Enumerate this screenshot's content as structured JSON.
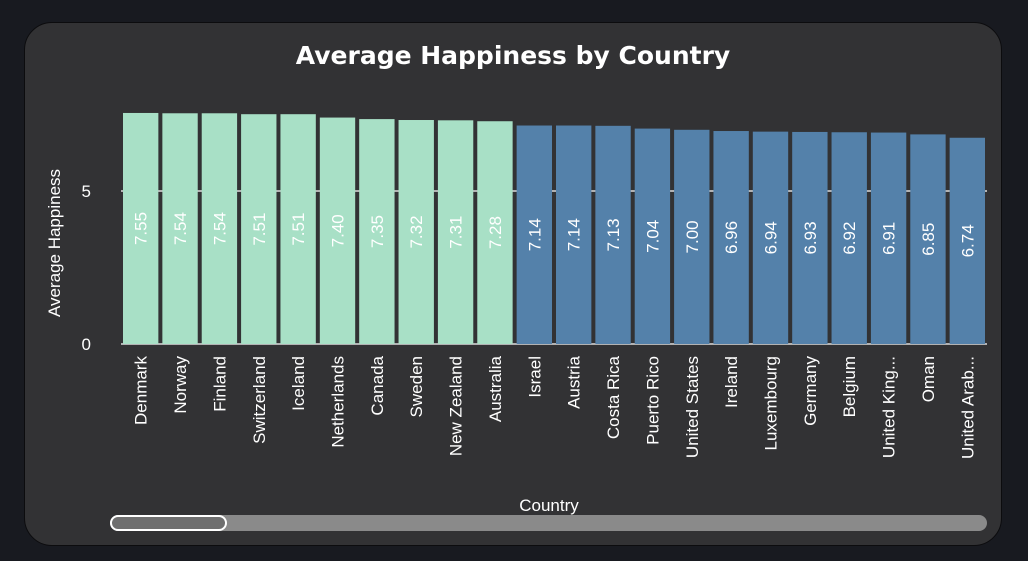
{
  "chart_data": {
    "type": "bar",
    "title": "Average Happiness by Country",
    "xlabel": "Country",
    "ylabel": "Average Happiness",
    "ylim": [
      0,
      7.55
    ],
    "yticks": [
      0,
      5
    ],
    "grid": true,
    "legend": "none",
    "categories": [
      "Denmark",
      "Norway",
      "Finland",
      "Switzerland",
      "Iceland",
      "Netherlands",
      "Canada",
      "Sweden",
      "New Zealand",
      "Australia",
      "Israel",
      "Austria",
      "Costa Rica",
      "Puerto Rico",
      "United States",
      "Ireland",
      "Luxembourg",
      "Germany",
      "Belgium",
      "United Kingdom",
      "Oman",
      "United Arab Emirates"
    ],
    "tick_labels": [
      "Denmark",
      "Norway",
      "Finland",
      "Switzerland",
      "Iceland",
      "Netherlands",
      "Canada",
      "Sweden",
      "New Zealand",
      "Australia",
      "Israel",
      "Austria",
      "Costa Rica",
      "Puerto Rico",
      "United States",
      "Ireland",
      "Luxembourg",
      "Germany",
      "Belgium",
      "United King...",
      "Oman",
      "United Arab..."
    ],
    "values": [
      7.55,
      7.54,
      7.54,
      7.51,
      7.51,
      7.4,
      7.35,
      7.32,
      7.31,
      7.28,
      7.14,
      7.14,
      7.13,
      7.04,
      7.0,
      6.96,
      6.94,
      6.93,
      6.92,
      6.91,
      6.85,
      6.74
    ],
    "data_labels": [
      "7.55",
      "7.54",
      "7.54",
      "7.51",
      "7.51",
      "7.40",
      "7.35",
      "7.32",
      "7.31",
      "7.28",
      "7.14",
      "7.14",
      "7.13",
      "7.04",
      "7.00",
      "6.96",
      "6.94",
      "6.93",
      "6.92",
      "6.91",
      "6.85",
      "6.74"
    ],
    "highlight_count": 10,
    "colors": {
      "highlight": "#a8e0c6",
      "default": "#5481aa",
      "text": "#ffffff",
      "grid": "#ffffff"
    }
  }
}
